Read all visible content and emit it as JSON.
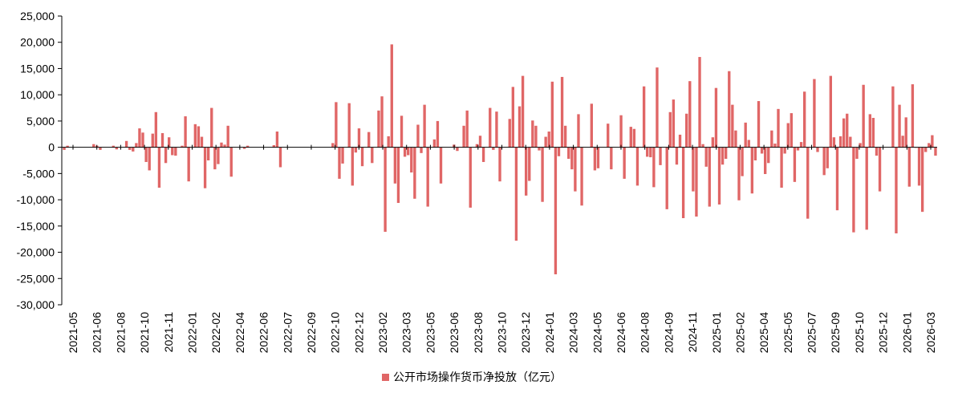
{
  "chart_data": {
    "type": "bar",
    "legend": {
      "label": "公开市场操作货币净投放（亿元）",
      "position": "bottom-center"
    },
    "series": [
      {
        "name": "公开市场操作货币净投放（亿元）",
        "color": "#e06666"
      }
    ],
    "ylim": [
      -30000,
      25000
    ],
    "y_ticks": [
      "25,000",
      "20,000",
      "15,000",
      "10,000",
      "5,000",
      "0",
      "-5,000",
      "-10,000",
      "-15,000",
      "-20,000",
      "-25,000",
      "-30,000"
    ],
    "x_tick_labels": [
      "2021-05",
      "2021-06",
      "2021-08",
      "2021-10",
      "2021-11",
      "2022-01",
      "2022-02",
      "2022-04",
      "2022-06",
      "2022-07",
      "2022-09",
      "2022-10",
      "2022-12",
      "2023-02",
      "2023-03",
      "2023-05",
      "2023-06",
      "2023-08",
      "2023-10",
      "2023-12",
      "2024-01",
      "2024-03",
      "2024-05",
      "2024-06",
      "2024-08",
      "2024-09",
      "2024-11",
      "2025-01",
      "2025-02",
      "2025-04",
      "2025-05",
      "2025-07",
      "2025-09",
      "2025-10",
      "2025-12",
      "2026-01",
      "2026-03"
    ],
    "grid": false,
    "values": [
      -500,
      300,
      0,
      0,
      0,
      0,
      0,
      0,
      0,
      600,
      300,
      -500,
      0,
      0,
      0,
      300,
      -400,
      0,
      0,
      1200,
      -500,
      -800,
      800,
      3600,
      2800,
      -2800,
      -4400,
      2600,
      6700,
      -7700,
      2700,
      -3000,
      1900,
      -1500,
      -1600,
      0,
      300,
      5900,
      -6500,
      0,
      4400,
      4000,
      2000,
      -7800,
      -2500,
      7500,
      -4200,
      -3200,
      900,
      500,
      4100,
      -5600,
      0,
      0,
      0,
      -300,
      300,
      0,
      0,
      0,
      0,
      0,
      0,
      0,
      400,
      3000,
      -3800,
      0,
      0,
      0,
      0,
      0,
      0,
      0,
      0,
      0,
      0,
      0,
      0,
      0,
      0,
      0,
      800,
      8600,
      -6000,
      -3100,
      0,
      8400,
      -7300,
      -1000,
      3600,
      -3600,
      0,
      2900,
      -3000,
      0,
      7000,
      9700,
      -16100,
      2100,
      19600,
      -6900,
      -10600,
      6000,
      -1800,
      -1500,
      -4800,
      -9800,
      4300,
      -1100,
      8100,
      -11300,
      0,
      1500,
      5000,
      -6900,
      0,
      0,
      0,
      500,
      -700,
      0,
      4100,
      7000,
      -11500,
      0,
      600,
      2200,
      -2800,
      0,
      7500,
      -500,
      6800,
      -6500,
      0,
      0,
      5400,
      11500,
      -17800,
      7800,
      13600,
      -9200,
      -6400,
      5100,
      4100,
      -600,
      -10400,
      2000,
      3000,
      12500,
      -24200,
      -1700,
      13400,
      4100,
      -2200,
      -4200,
      -8400,
      6300,
      -11100,
      0,
      0,
      8300,
      -4400,
      -4000,
      0,
      0,
      4500,
      -4200,
      0,
      0,
      6100,
      -6000,
      0,
      3900,
      3500,
      -7300,
      0,
      11600,
      -1800,
      -1900,
      -7600,
      15200,
      -3400,
      0,
      -11800,
      6700,
      9100,
      -3300,
      2400,
      -13500,
      6400,
      12600,
      -8400,
      -13200,
      17200,
      600,
      -3700,
      -11300,
      1900,
      11300,
      -10900,
      -3300,
      -2200,
      14500,
      8100,
      3200,
      -10100,
      -5500,
      4700,
      1400,
      -8800,
      -2500,
      8800,
      -1200,
      -5100,
      -3000,
      3200,
      700,
      7300,
      -7700,
      -1200,
      4600,
      6500,
      -6600,
      -600,
      1000,
      10600,
      -13600,
      0,
      13000,
      -900,
      0,
      -5300,
      -4000,
      13600,
      1900,
      -12000,
      2100,
      5500,
      6400,
      2000,
      -16200,
      -2200,
      800,
      11900,
      -15700,
      6300,
      5600,
      -1600,
      -8400,
      0,
      0,
      0,
      11600,
      -16400,
      8100,
      2200,
      5700,
      -7500,
      12000,
      -100,
      -7300,
      -12300,
      -900,
      800,
      2300,
      -1600
    ]
  }
}
